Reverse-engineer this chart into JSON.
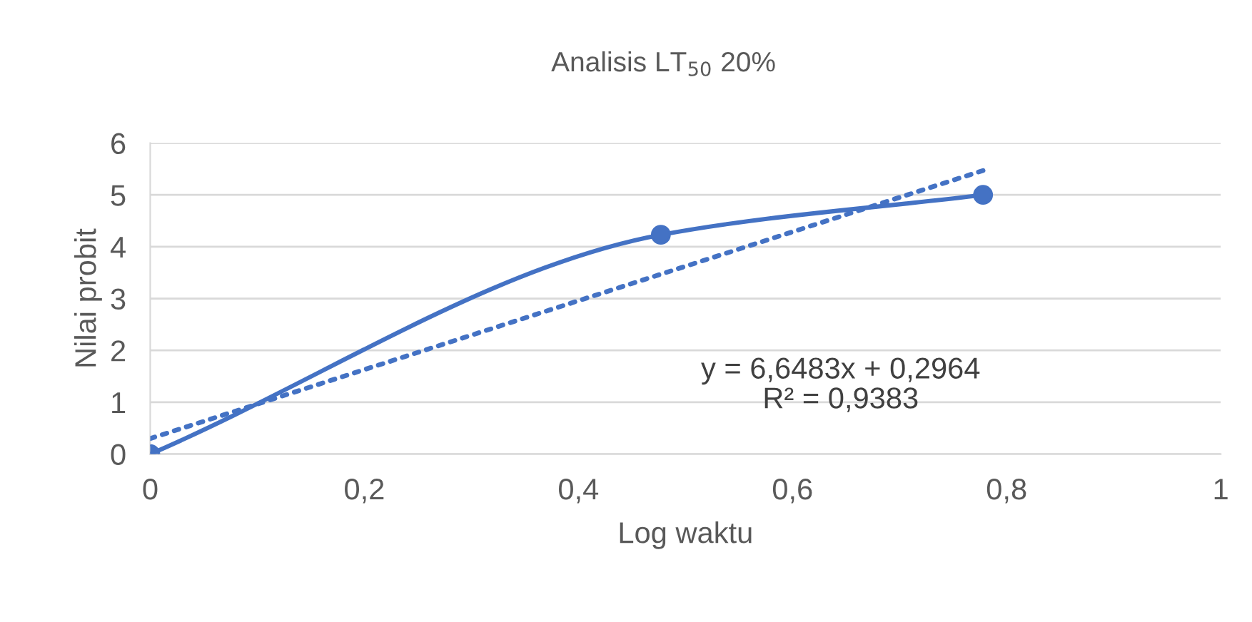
{
  "chart_data": {
    "type": "line",
    "title": "Analisis LT$_{50}$ 20%",
    "xlabel": "Log waktu",
    "ylabel": "Nilai probit",
    "series": [
      {
        "color": "#4472c4",
        "x": [
          0,
          0.477,
          0.778
        ],
        "values": [
          0,
          4.23,
          5.0
        ],
        "marker": "circle",
        "line_style": "solid"
      },
      {
        "color": "#4472c4",
        "x": [
          0,
          0.778
        ],
        "values": [
          0.3,
          5.47
        ],
        "marker": "none",
        "line_style": "dotted"
      }
    ],
    "xlim": [
      0,
      1
    ],
    "xticks": [
      {
        "value": 0,
        "label": "0"
      },
      {
        "value": 0.2,
        "label": "0,2"
      },
      {
        "value": 0.4,
        "label": "0,4"
      },
      {
        "value": 0.6,
        "label": "0,6"
      },
      {
        "value": 0.8,
        "label": "0,8"
      },
      {
        "value": 1,
        "label": "1"
      }
    ],
    "ylim": [
      0,
      6
    ],
    "yticks": [
      0,
      1,
      2,
      3,
      4,
      5,
      6
    ],
    "grid": "y",
    "legend": false,
    "annotations": [
      "y = 6,6483x + 0,2964",
      "R² = 0,9383"
    ]
  }
}
